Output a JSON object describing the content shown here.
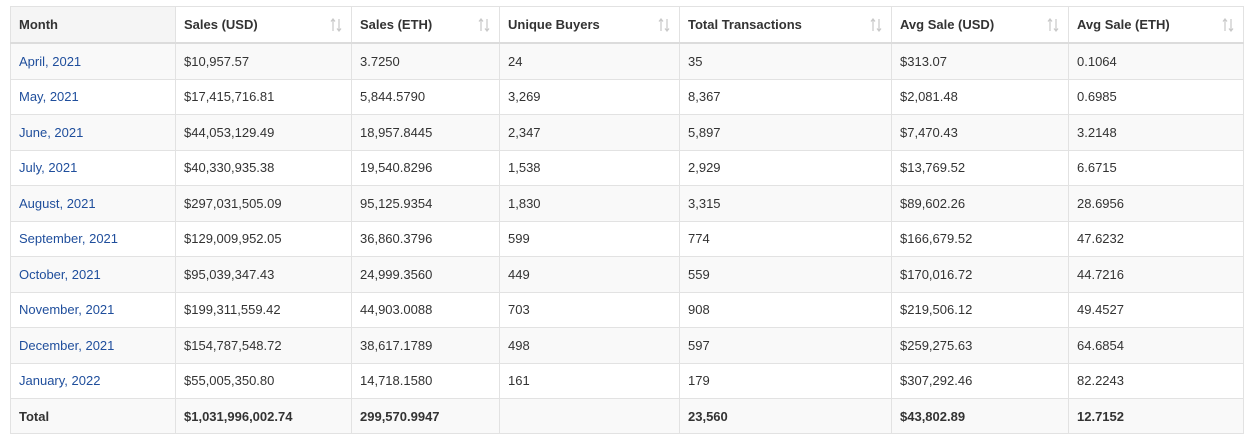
{
  "table": {
    "headers": [
      {
        "label": "Month",
        "sortable": false
      },
      {
        "label": "Sales (USD)",
        "sortable": true
      },
      {
        "label": "Sales (ETH)",
        "sortable": true
      },
      {
        "label": "Unique Buyers",
        "sortable": true
      },
      {
        "label": "Total Transactions",
        "sortable": true
      },
      {
        "label": "Avg Sale (USD)",
        "sortable": true
      },
      {
        "label": "Avg Sale (ETH)",
        "sortable": true
      }
    ],
    "rows": [
      [
        "April, 2021",
        "$10,957.57",
        "3.7250",
        "24",
        "35",
        "$313.07",
        "0.1064"
      ],
      [
        "May, 2021",
        "$17,415,716.81",
        "5,844.5790",
        "3,269",
        "8,367",
        "$2,081.48",
        "0.6985"
      ],
      [
        "June, 2021",
        "$44,053,129.49",
        "18,957.8445",
        "2,347",
        "5,897",
        "$7,470.43",
        "3.2148"
      ],
      [
        "July, 2021",
        "$40,330,935.38",
        "19,540.8296",
        "1,538",
        "2,929",
        "$13,769.52",
        "6.6715"
      ],
      [
        "August, 2021",
        "$297,031,505.09",
        "95,125.9354",
        "1,830",
        "3,315",
        "$89,602.26",
        "28.6956"
      ],
      [
        "September, 2021",
        "$129,009,952.05",
        "36,860.3796",
        "599",
        "774",
        "$166,679.52",
        "47.6232"
      ],
      [
        "October, 2021",
        "$95,039,347.43",
        "24,999.3560",
        "449",
        "559",
        "$170,016.72",
        "44.7216"
      ],
      [
        "November, 2021",
        "$199,311,559.42",
        "44,903.0088",
        "703",
        "908",
        "$219,506.12",
        "49.4527"
      ],
      [
        "December, 2021",
        "$154,787,548.72",
        "38,617.1789",
        "498",
        "597",
        "$259,275.63",
        "64.6854"
      ],
      [
        "January, 2022",
        "$55,005,350.80",
        "14,718.1580",
        "161",
        "179",
        "$307,292.46",
        "82.2243"
      ]
    ],
    "total": [
      "Total",
      "$1,031,996,002.74",
      "299,570.9947",
      "",
      "23,560",
      "$43,802.89",
      "12.7152"
    ]
  },
  "icons": {
    "sort": "sort-arrows-icon"
  },
  "colors": {
    "link": "#1f4e9c",
    "border": "#e2e2e2",
    "header_bg_first": "#f5f5f5",
    "row_alt_bg": "#f9f9f9",
    "sort_icon": "#c8c8c8"
  }
}
